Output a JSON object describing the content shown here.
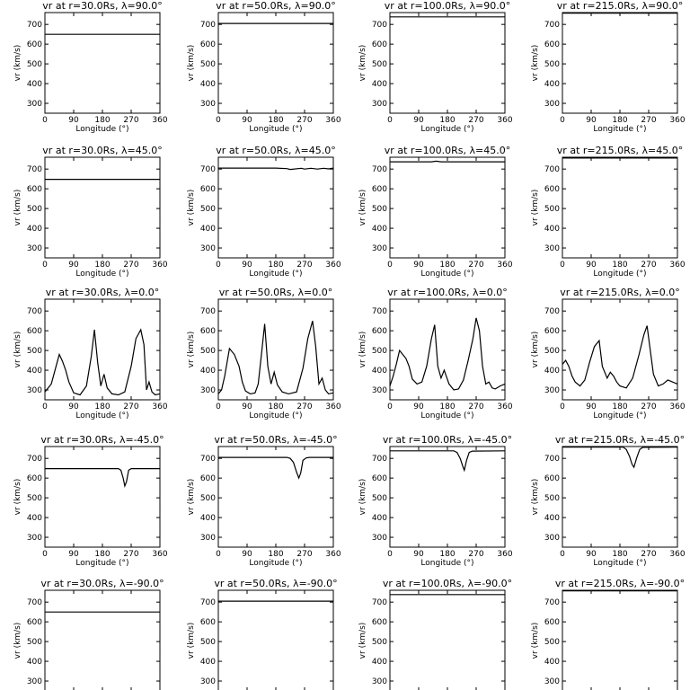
{
  "chart_data": {
    "type": "line",
    "panel_grid": {
      "rows": 5,
      "cols": 4
    },
    "xlabel": "Longitude (°)",
    "ylabel": "vr (km/s)",
    "xlim": [
      0,
      360
    ],
    "ylim": [
      250,
      760
    ],
    "xticks": [
      0,
      90,
      180,
      270,
      360
    ],
    "yticks": [
      300,
      400,
      500,
      600,
      700
    ],
    "panels": [
      {
        "title": "vr at r=30.0Rs, λ=90.0°",
        "x": [
          0,
          360
        ],
        "y": [
          650,
          650
        ]
      },
      {
        "title": "vr at r=50.0Rs, λ=90.0°",
        "x": [
          0,
          360
        ],
        "y": [
          705,
          705
        ]
      },
      {
        "title": "vr at r=100.0Rs, λ=90.0°",
        "x": [
          0,
          360
        ],
        "y": [
          738,
          738
        ]
      },
      {
        "title": "vr at r=215.0Rs, λ=90.0°",
        "x": [
          0,
          360
        ],
        "y": [
          757,
          757
        ]
      },
      {
        "title": "vr at r=30.0Rs, λ=45.0°",
        "x": [
          0,
          360
        ],
        "y": [
          648,
          648
        ]
      },
      {
        "title": "vr at r=50.0Rs, λ=45.0°",
        "x": [
          0,
          180,
          215,
          225,
          260,
          270,
          290,
          310,
          330,
          345,
          360
        ],
        "y": [
          705,
          705,
          702,
          698,
          704,
          700,
          704,
          700,
          704,
          701,
          705
        ]
      },
      {
        "title": "vr at r=100.0Rs, λ=45.0°",
        "x": [
          0,
          130,
          145,
          160,
          360
        ],
        "y": [
          737,
          737,
          740,
          737,
          737
        ]
      },
      {
        "title": "vr at r=215.0Rs, λ=45.0°",
        "x": [
          0,
          360
        ],
        "y": [
          756,
          756
        ]
      },
      {
        "title": "vr at r=30.0Rs, λ=0.0°",
        "x": [
          0,
          20,
          35,
          45,
          55,
          65,
          75,
          90,
          110,
          130,
          145,
          155,
          165,
          175,
          185,
          195,
          210,
          230,
          250,
          270,
          285,
          300,
          310,
          318,
          326,
          335,
          345,
          360
        ],
        "y": [
          290,
          330,
          420,
          480,
          445,
          400,
          340,
          285,
          275,
          320,
          470,
          605,
          440,
          320,
          380,
          310,
          280,
          275,
          290,
          420,
          560,
          605,
          530,
          300,
          340,
          290,
          275,
          280
        ]
      },
      {
        "title": "vr at r=50.0Rs, λ=0.0°",
        "x": [
          0,
          10,
          20,
          35,
          50,
          65,
          75,
          85,
          100,
          115,
          125,
          135,
          145,
          155,
          165,
          175,
          185,
          200,
          220,
          245,
          265,
          280,
          295,
          305,
          315,
          325,
          335,
          345,
          360
        ],
        "y": [
          280,
          300,
          370,
          510,
          480,
          420,
          340,
          295,
          280,
          285,
          330,
          480,
          635,
          420,
          330,
          390,
          325,
          290,
          280,
          290,
          410,
          560,
          650,
          520,
          330,
          360,
          300,
          280,
          285
        ]
      },
      {
        "title": "vr at r=100.0Rs, λ=0.0°",
        "x": [
          0,
          10,
          20,
          30,
          40,
          50,
          60,
          70,
          85,
          100,
          115,
          130,
          140,
          150,
          160,
          170,
          185,
          200,
          215,
          230,
          245,
          260,
          270,
          280,
          290,
          300,
          310,
          320,
          330,
          345,
          360
        ],
        "y": [
          320,
          370,
          430,
          500,
          480,
          460,
          420,
          355,
          330,
          340,
          420,
          560,
          630,
          420,
          360,
          400,
          330,
          300,
          305,
          350,
          450,
          560,
          665,
          600,
          420,
          330,
          340,
          310,
          305,
          320,
          330
        ]
      },
      {
        "title": "vr at r=215.0Rs, λ=0.0°",
        "x": [
          0,
          10,
          20,
          30,
          40,
          55,
          70,
          85,
          100,
          115,
          125,
          140,
          150,
          160,
          170,
          180,
          200,
          220,
          240,
          255,
          265,
          275,
          285,
          300,
          315,
          330,
          345,
          360
        ],
        "y": [
          430,
          450,
          420,
          370,
          340,
          320,
          350,
          440,
          520,
          550,
          420,
          360,
          390,
          370,
          340,
          320,
          310,
          360,
          480,
          580,
          625,
          500,
          380,
          320,
          330,
          350,
          340,
          330
        ]
      },
      {
        "title": "vr at r=30.0Rs, λ=-45.0°",
        "x": [
          0,
          230,
          238,
          245,
          250,
          255,
          262,
          270,
          360
        ],
        "y": [
          648,
          648,
          640,
          600,
          560,
          580,
          640,
          648,
          648
        ]
      },
      {
        "title": "vr at r=50.0Rs, λ=-45.0°",
        "x": [
          0,
          215,
          225,
          235,
          245,
          252,
          258,
          265,
          275,
          285,
          360
        ],
        "y": [
          705,
          705,
          700,
          680,
          630,
          600,
          625,
          690,
          702,
          705,
          705
        ]
      },
      {
        "title": "vr at r=100.0Rs, λ=-45.0°",
        "x": [
          0,
          200,
          210,
          220,
          228,
          233,
          240,
          248,
          258,
          360
        ],
        "y": [
          738,
          738,
          730,
          700,
          660,
          640,
          690,
          730,
          737,
          738
        ]
      },
      {
        "title": "vr at r=215.0Rs, λ=-45.0°",
        "x": [
          0,
          190,
          200,
          210,
          218,
          224,
          232,
          242,
          252,
          360
        ],
        "y": [
          757,
          757,
          745,
          710,
          670,
          655,
          700,
          745,
          756,
          757
        ]
      },
      {
        "title": "vr at r=30.0Rs, λ=-90.0°",
        "x": [
          0,
          360
        ],
        "y": [
          650,
          650
        ]
      },
      {
        "title": "vr at r=50.0Rs, λ=-90.0°",
        "x": [
          0,
          360
        ],
        "y": [
          705,
          705
        ]
      },
      {
        "title": "vr at r=100.0Rs, λ=-90.0°",
        "x": [
          0,
          360
        ],
        "y": [
          738,
          738
        ]
      },
      {
        "title": "vr at r=215.0Rs, λ=-90.0°",
        "x": [
          0,
          360
        ],
        "y": [
          757,
          757
        ]
      }
    ]
  }
}
